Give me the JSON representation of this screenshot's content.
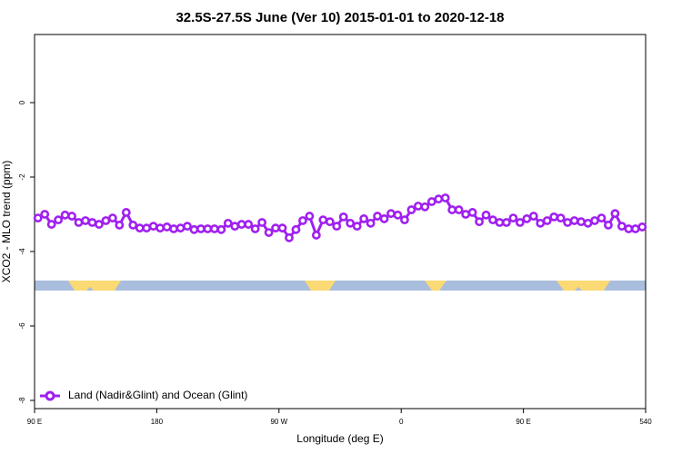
{
  "chart_data": {
    "type": "line",
    "title": "32.5S-27.5S June (Ver 10)   2015-01-01 to 2020-12-18",
    "x_label": "Longitude (deg E)",
    "y_label": "XCO2 - MLO trend (ppm)",
    "x": [
      92.5,
      97.5,
      102.5,
      107.5,
      112.5,
      117.5,
      122.5,
      127.5,
      132.5,
      137.5,
      142.5,
      147.5,
      152.5,
      157.5,
      162.5,
      167.5,
      172.5,
      177.5,
      182.5,
      187.5,
      192.5,
      197.5,
      202.5,
      207.5,
      212.5,
      217.5,
      222.5,
      227.5,
      232.5,
      237.5,
      242.5,
      247.5,
      252.5,
      257.5,
      262.5,
      267.5,
      272.5,
      277.5,
      282.5,
      287.5,
      292.5,
      297.5,
      302.5,
      307.5,
      312.5,
      317.5,
      322.5,
      327.5,
      332.5,
      337.5,
      342.5,
      347.5,
      352.5,
      357.5,
      362.5,
      367.5,
      372.5,
      377.5,
      382.5,
      387.5,
      392.5,
      397.5,
      402.5,
      407.5,
      412.5,
      417.5,
      422.5,
      427.5,
      432.5,
      437.5,
      442.5,
      447.5,
      452.5,
      457.5,
      462.5,
      467.5,
      472.5,
      477.5,
      482.5,
      487.5,
      492.5,
      497.5,
      502.5,
      507.5,
      512.5,
      517.5,
      522.5,
      527.5,
      532.5,
      537.5
    ],
    "series": [
      {
        "name": "Land (Nadir&Glint) and Ocean (Glint)",
        "color": "#a020f0",
        "values": [
          -3.1,
          -3.0,
          -3.27,
          -3.15,
          -3.02,
          -3.05,
          -3.22,
          -3.17,
          -3.22,
          -3.27,
          -3.17,
          -3.1,
          -3.29,
          -2.95,
          -3.29,
          -3.37,
          -3.37,
          -3.32,
          -3.37,
          -3.34,
          -3.39,
          -3.37,
          -3.32,
          -3.41,
          -3.39,
          -3.39,
          -3.39,
          -3.41,
          -3.24,
          -3.32,
          -3.27,
          -3.27,
          -3.39,
          -3.22,
          -3.49,
          -3.37,
          -3.37,
          -3.63,
          -3.41,
          -3.17,
          -3.05,
          -3.56,
          -3.15,
          -3.2,
          -3.32,
          -3.07,
          -3.24,
          -3.32,
          -3.12,
          -3.24,
          -3.05,
          -3.12,
          -2.98,
          -3.02,
          -3.15,
          -2.88,
          -2.78,
          -2.8,
          -2.66,
          -2.59,
          -2.56,
          -2.88,
          -2.88,
          -3.0,
          -2.95,
          -3.2,
          -3.02,
          -3.15,
          -3.22,
          -3.22,
          -3.1,
          -3.22,
          -3.12,
          -3.05,
          -3.24,
          -3.17,
          -3.07,
          -3.1,
          -3.22,
          -3.17,
          -3.2,
          -3.24,
          -3.17,
          -3.1,
          -3.29,
          -2.98,
          -3.32,
          -3.39,
          -3.39,
          -3.34
        ]
      }
    ],
    "xlim": [
      90,
      540
    ],
    "xticks": [
      {
        "value": 90,
        "label": "90 E"
      },
      180,
      {
        "value": 270,
        "label": "90 W"
      },
      {
        "value": 360,
        "label": "0"
      },
      {
        "value": 450,
        "label": "90 E"
      },
      540
    ],
    "ylim": [
      -8.22,
      1.83
    ],
    "yticks": [
      0,
      -2,
      -4,
      -6,
      -8
    ],
    "legend": "bottom-left"
  }
}
